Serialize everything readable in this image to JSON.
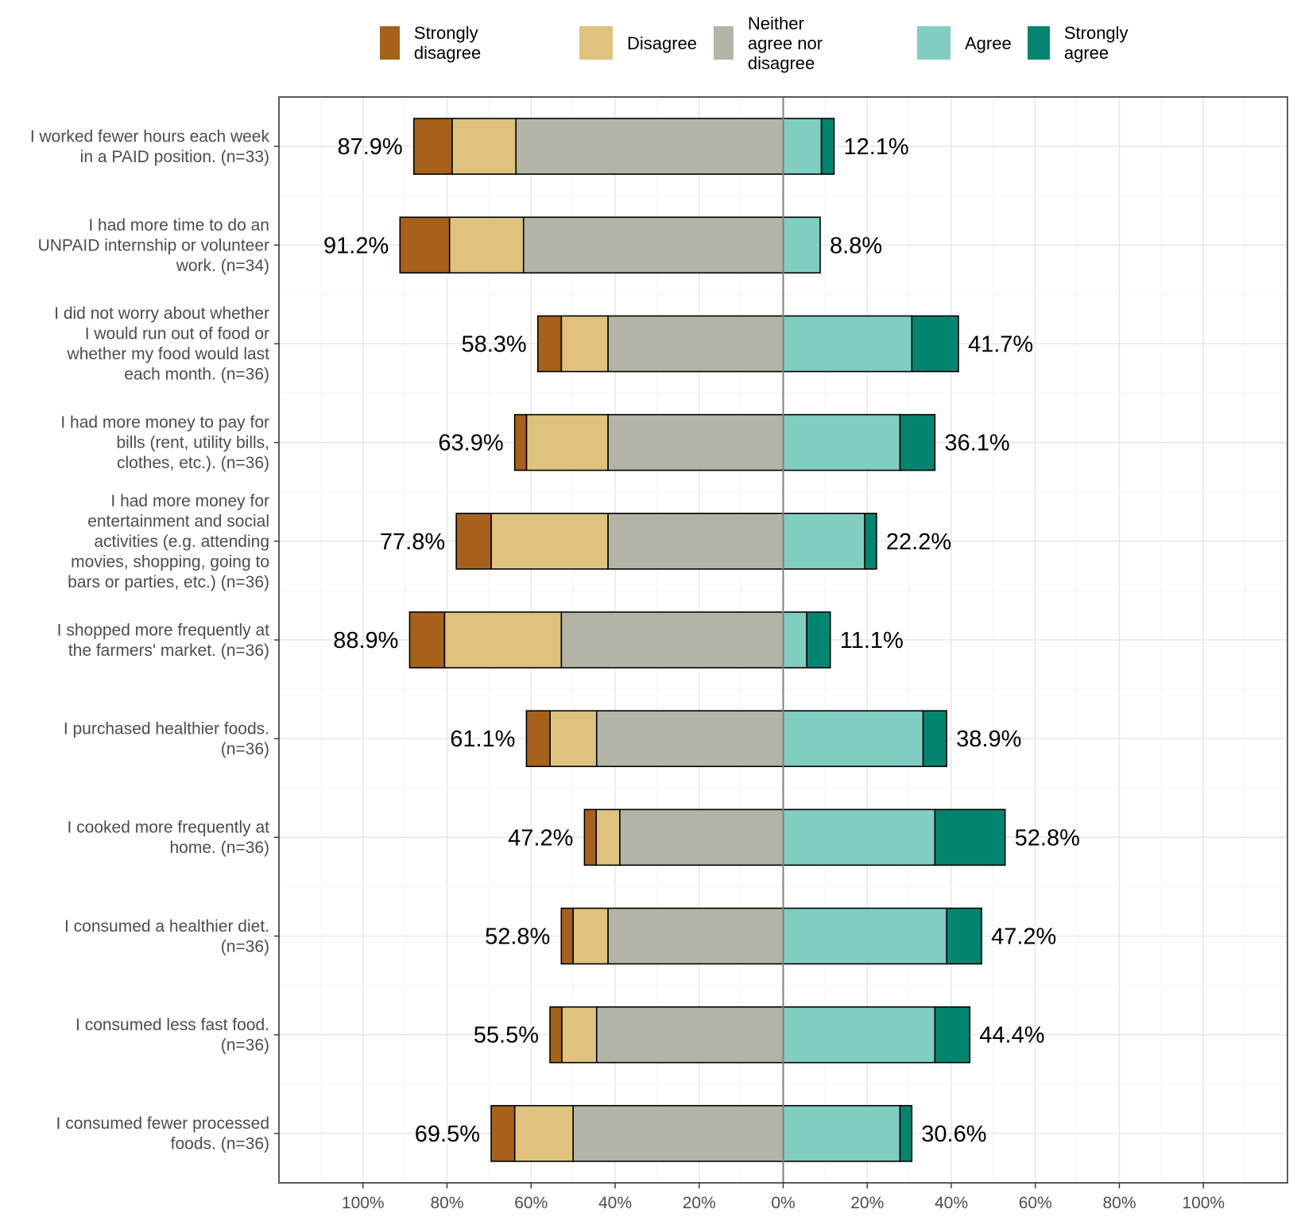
{
  "chart_data": {
    "type": "bar",
    "subtype": "diverging-stacked-horizontal",
    "title": "",
    "xlabel": "",
    "ylabel": "",
    "xlim": [
      -120,
      120
    ],
    "x_ticks": [
      -100,
      -80,
      -60,
      -40,
      -20,
      0,
      20,
      40,
      60,
      80,
      100
    ],
    "x_tick_labels": [
      "100%",
      "80%",
      "60%",
      "40%",
      "20%",
      "0%",
      "20%",
      "40%",
      "60%",
      "80%",
      "100%"
    ],
    "legend_position": "top",
    "grid": true,
    "series": [
      {
        "name": "Strongly disagree",
        "color": "#A6611A"
      },
      {
        "name": "Disagree",
        "color": "#DFC27D"
      },
      {
        "name": "Neither agree nor disagree",
        "color": "#B2B4A6"
      },
      {
        "name": "Agree",
        "color": "#80CDC1"
      },
      {
        "name": "Strongly agree",
        "color": "#018571"
      }
    ],
    "categories": [
      "I worked fewer hours each week in a PAID position. (n=33)",
      "I had more time to do an UNPAID internship or volunteer work. (n=34)",
      "I did not worry about whether I would run out of food or whether my food would last each month. (n=36)",
      "I had more money to pay for bills (rent, utility bills, clothes, etc.). (n=36)",
      "I had more money for entertainment and social activities (e.g. attending movies, shopping, going to bars or parties, etc.) (n=36)",
      "I shopped more frequently at the farmers' market. (n=36)",
      "I purchased healthier foods. (n=36)",
      "I cooked more frequently at home. (n=36)",
      "I consumed a healthier diet. (n=36)",
      "I consumed less fast food. (n=36)",
      "I consumed fewer processed foods. (n=36)"
    ],
    "category_label_lines": [
      [
        "I worked fewer hours each week",
        "in a PAID position. (n=33)"
      ],
      [
        "I had more time to do an",
        "UNPAID internship or volunteer",
        "work. (n=34)"
      ],
      [
        "I did not worry about whether",
        "I would run out of food or",
        "whether my food would last",
        "each month. (n=36)"
      ],
      [
        "I had more money to pay for",
        "bills (rent, utility bills,",
        "clothes, etc.). (n=36)"
      ],
      [
        "I had more money for",
        "entertainment and social",
        "activities (e.g. attending",
        "movies, shopping, going to",
        "bars or parties, etc.) (n=36)"
      ],
      [
        "I shopped more frequently at",
        "the farmers' market. (n=36)"
      ],
      [
        "I purchased healthier foods.",
        "(n=36)"
      ],
      [
        "I cooked more frequently at",
        "home. (n=36)"
      ],
      [
        "I consumed a healthier diet.",
        "(n=36)"
      ],
      [
        "I consumed less fast food.",
        "(n=36)"
      ],
      [
        "I consumed fewer processed",
        "foods. (n=36)"
      ]
    ],
    "values": [
      {
        "strongly_disagree": 9.1,
        "disagree": 15.2,
        "neither": 63.6,
        "agree": 9.1,
        "strongly_agree": 3.0
      },
      {
        "strongly_disagree": 11.8,
        "disagree": 17.6,
        "neither": 61.8,
        "agree": 8.8,
        "strongly_agree": 0.0
      },
      {
        "strongly_disagree": 5.6,
        "disagree": 11.1,
        "neither": 41.7,
        "agree": 30.6,
        "strongly_agree": 11.1
      },
      {
        "strongly_disagree": 2.8,
        "disagree": 19.4,
        "neither": 41.7,
        "agree": 27.8,
        "strongly_agree": 8.3
      },
      {
        "strongly_disagree": 8.3,
        "disagree": 27.8,
        "neither": 41.7,
        "agree": 19.4,
        "strongly_agree": 2.8
      },
      {
        "strongly_disagree": 8.3,
        "disagree": 27.8,
        "neither": 52.8,
        "agree": 5.6,
        "strongly_agree": 5.6
      },
      {
        "strongly_disagree": 5.6,
        "disagree": 11.1,
        "neither": 44.4,
        "agree": 33.3,
        "strongly_agree": 5.6
      },
      {
        "strongly_disagree": 2.8,
        "disagree": 5.6,
        "neither": 38.9,
        "agree": 36.1,
        "strongly_agree": 16.7
      },
      {
        "strongly_disagree": 2.8,
        "disagree": 8.3,
        "neither": 41.7,
        "agree": 38.9,
        "strongly_agree": 8.3
      },
      {
        "strongly_disagree": 2.8,
        "disagree": 8.3,
        "neither": 44.4,
        "agree": 36.1,
        "strongly_agree": 8.3
      },
      {
        "strongly_disagree": 5.6,
        "disagree": 13.9,
        "neither": 50.0,
        "agree": 27.8,
        "strongly_agree": 2.8
      }
    ],
    "left_totals": [
      "87.9%",
      "91.2%",
      "58.3%",
      "63.9%",
      "77.8%",
      "88.9%",
      "61.1%",
      "47.2%",
      "52.8%",
      "55.5%",
      "69.5%"
    ],
    "right_totals": [
      "12.1%",
      "8.8%",
      "41.7%",
      "36.1%",
      "22.2%",
      "11.1%",
      "38.9%",
      "52.8%",
      "47.2%",
      "44.4%",
      "30.6%"
    ]
  },
  "legend": {
    "items": [
      {
        "label_lines": [
          "Strongly disagree"
        ],
        "color": "#A6611A"
      },
      {
        "label_lines": [
          "Disagree"
        ],
        "color": "#DFC27D"
      },
      {
        "label_lines": [
          "Neither agree nor",
          "disagree"
        ],
        "color": "#B2B4A6"
      },
      {
        "label_lines": [
          "Agree"
        ],
        "color": "#80CDC1"
      },
      {
        "label_lines": [
          "Strongly agree"
        ],
        "color": "#018571"
      }
    ]
  }
}
